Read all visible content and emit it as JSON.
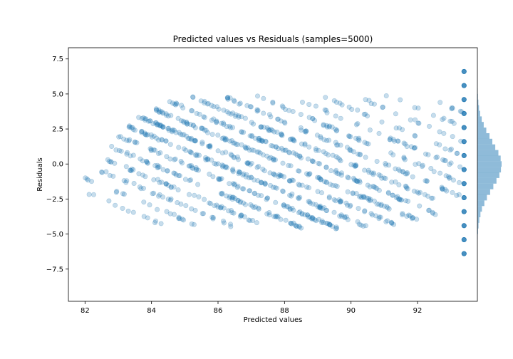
{
  "chart_data": {
    "type": "scatter",
    "title": "Predicted values vs Residuals (samples=5000)",
    "xlabel": "Predicted values",
    "ylabel": "Residuals",
    "xlim": [
      81.5,
      93.8
    ],
    "ylim": [
      -9.8,
      8.3
    ],
    "xticks": [
      82,
      84,
      86,
      88,
      90,
      92
    ],
    "yticks": [
      -7.5,
      -5.0,
      -2.5,
      0.0,
      2.5,
      5.0,
      7.5
    ],
    "xtick_labels": [
      "82",
      "84",
      "86",
      "88",
      "90",
      "92"
    ],
    "ytick_labels": [
      "−7.5",
      "−5.0",
      "−2.5",
      "0.0",
      "2.5",
      "5.0",
      "7.5"
    ],
    "marker_color": "#1f77b4",
    "marker_alpha": 0.25,
    "histogram_color": "#1f77b4",
    "histogram_alpha": 0.5,
    "sample_count": 5000,
    "band_structure": {
      "description_of_pattern": "diagonal bands of slope -1",
      "band_offsets": [
        80,
        81,
        82,
        83,
        84,
        85,
        86,
        87,
        88,
        89,
        90,
        91,
        92,
        93,
        94,
        95,
        96,
        97
      ],
      "band_x_ranges": [
        [
          82.0,
          84.5
        ],
        [
          82.0,
          85.5
        ],
        [
          82.2,
          86.6
        ],
        [
          82.5,
          87.6
        ],
        [
          82.7,
          88.6
        ],
        [
          83.0,
          89.6
        ],
        [
          83.3,
          90.5
        ],
        [
          83.6,
          91.3
        ],
        [
          84.0,
          92.0
        ],
        [
          84.5,
          92.6
        ],
        [
          85.2,
          93.0
        ],
        [
          86.1,
          93.3
        ],
        [
          87.1,
          93.4
        ],
        [
          88.1,
          93.4
        ],
        [
          89.1,
          93.4
        ],
        [
          90.1,
          93.4
        ],
        [
          91.0,
          93.4
        ],
        [
          92.0,
          93.4
        ]
      ],
      "band_density": [
        0.12,
        0.2,
        0.35,
        0.55,
        0.75,
        0.9,
        1.0,
        1.0,
        0.95,
        0.85,
        0.7,
        0.55,
        0.4,
        0.28,
        0.18,
        0.1,
        0.06,
        0.04
      ],
      "right_column_x": 93.4,
      "right_column_y": [
        6.6,
        5.6,
        4.6,
        3.6,
        2.6,
        1.6,
        0.6,
        -0.4,
        -1.4,
        -2.4,
        -3.4,
        -4.4,
        -5.4,
        -6.4
      ]
    },
    "histogram": {
      "bin_centers": [
        -5.2,
        -4.8,
        -4.4,
        -4.0,
        -3.6,
        -3.2,
        -2.8,
        -2.4,
        -2.0,
        -1.6,
        -1.2,
        -0.8,
        -0.4,
        0.0,
        0.4,
        0.8,
        1.2,
        1.6,
        2.0,
        2.4,
        2.8,
        3.2,
        3.6,
        4.0,
        4.4,
        4.8,
        5.2
      ],
      "counts": [
        6,
        10,
        18,
        30,
        48,
        72,
        110,
        150,
        200,
        250,
        300,
        345,
        370,
        380,
        365,
        330,
        280,
        235,
        190,
        140,
        100,
        68,
        42,
        26,
        16,
        9,
        5
      ]
    }
  }
}
